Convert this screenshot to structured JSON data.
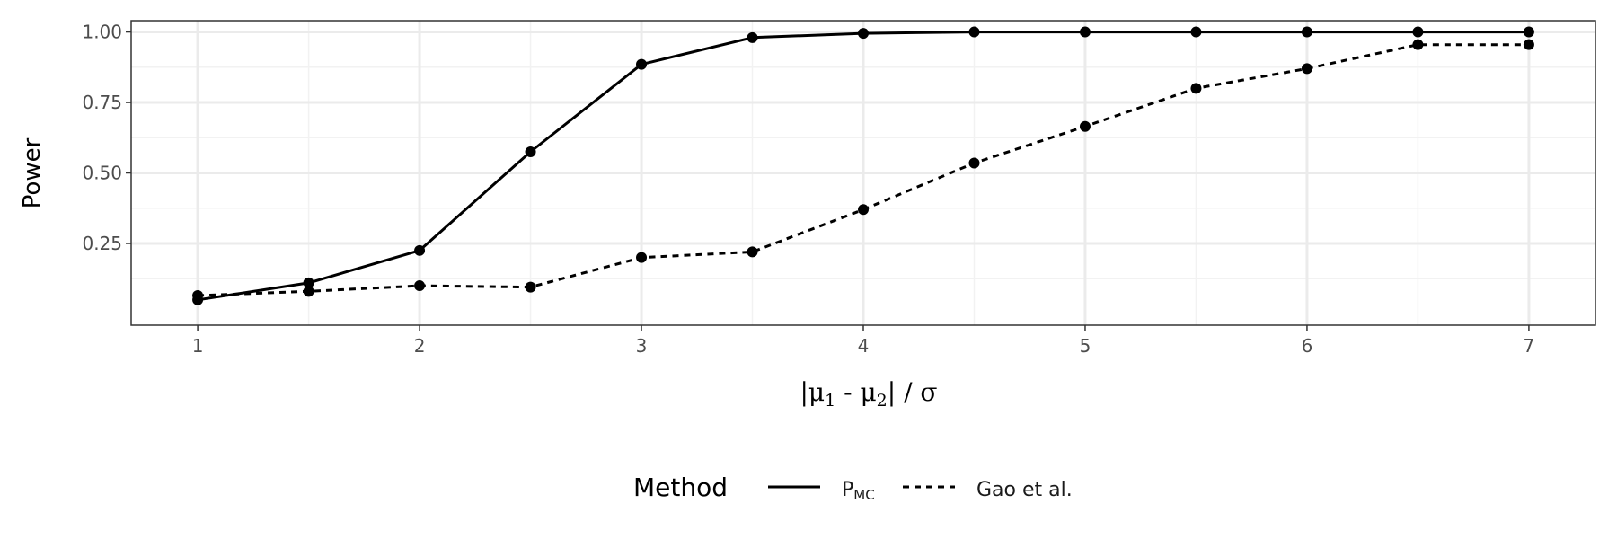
{
  "chart_data": {
    "type": "line",
    "x": [
      1,
      1.5,
      2,
      2.5,
      3,
      3.5,
      4,
      4.5,
      5,
      5.5,
      6,
      6.5,
      7
    ],
    "series": [
      {
        "name": "P_MC",
        "name_main": "P",
        "name_sub": "MC",
        "line_style": "solid",
        "values": [
          0.05,
          0.11,
          0.225,
          0.575,
          0.885,
          0.98,
          0.995,
          1.0,
          1.0,
          1.0,
          1.0,
          1.0,
          1.0
        ]
      },
      {
        "name": "Gao et al.",
        "line_style": "dashed",
        "values": [
          0.065,
          0.08,
          0.1,
          0.095,
          0.2,
          0.22,
          0.37,
          0.535,
          0.665,
          0.8,
          0.87,
          0.955,
          0.955
        ]
      }
    ],
    "xlabel": "|μ1 - μ2| / σ",
    "xlabel_parts": {
      "open": "|μ",
      "sub1": "1",
      "mid": " - μ",
      "sub2": "2",
      "close": "| / σ"
    },
    "ylabel": "Power",
    "xlim": [
      0.7,
      7.3
    ],
    "ylim": [
      -0.04,
      1.04
    ],
    "x_ticks": [
      "1",
      "2",
      "3",
      "4",
      "5",
      "6",
      "7"
    ],
    "y_ticks": [
      "0.25",
      "0.50",
      "0.75",
      "1.00"
    ],
    "grid": true,
    "legend": {
      "title": "Method",
      "position": "bottom"
    },
    "colors": {
      "line": "#000000",
      "grid_major": "#ebebeb",
      "grid_minor": "#f2f2f2",
      "panel_border": "#333333",
      "tick_text": "#4d4d4d"
    }
  }
}
